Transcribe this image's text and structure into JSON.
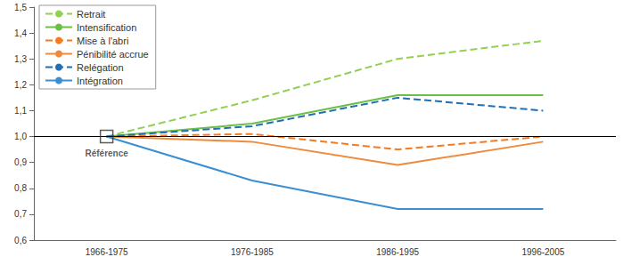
{
  "chart_data": {
    "type": "line",
    "categories": [
      "1966-1975",
      "1976-1985",
      "1986-1995",
      "1996-2005"
    ],
    "series": [
      {
        "name": "Retrait",
        "color": "#92d050",
        "line_style": "dashed",
        "values": [
          1.0,
          1.14,
          1.3,
          1.37
        ]
      },
      {
        "name": "Intensification",
        "color": "#6cbf45",
        "line_style": "solid",
        "values": [
          1.0,
          1.05,
          1.16,
          1.16
        ]
      },
      {
        "name": "Mise à l'abri",
        "color": "#f47b20",
        "line_style": "dashed",
        "values": [
          1.0,
          1.01,
          0.95,
          1.0
        ]
      },
      {
        "name": "Pénibilité accrue",
        "color": "#f08a3c",
        "line_style": "solid",
        "values": [
          1.0,
          0.98,
          0.89,
          0.98
        ]
      },
      {
        "name": "Relégation",
        "color": "#1f6fb5",
        "line_style": "dashed",
        "values": [
          1.0,
          1.04,
          1.15,
          1.1
        ]
      },
      {
        "name": "Intégration",
        "color": "#3a8fd3",
        "line_style": "solid",
        "values": [
          1.0,
          0.83,
          0.72,
          0.72
        ]
      }
    ],
    "ylim": [
      0.6,
      1.5
    ],
    "yticks": [
      {
        "value": 0.6,
        "label": "0,6"
      },
      {
        "value": 0.7,
        "label": "0,7"
      },
      {
        "value": 0.8,
        "label": "0,8"
      },
      {
        "value": 0.9,
        "label": "0,9"
      },
      {
        "value": 1.0,
        "label": "1,0"
      },
      {
        "value": 1.1,
        "label": "1,1"
      },
      {
        "value": 1.2,
        "label": "1,2"
      },
      {
        "value": 1.3,
        "label": "1,3"
      },
      {
        "value": 1.4,
        "label": "1,4"
      },
      {
        "value": 1.5,
        "label": "1,5"
      }
    ],
    "reference_line": 1.0,
    "annotations": [
      {
        "text": "Référence",
        "x": "1966-1975",
        "y": 1.0
      }
    ],
    "grid": false,
    "legend": "top-left"
  }
}
